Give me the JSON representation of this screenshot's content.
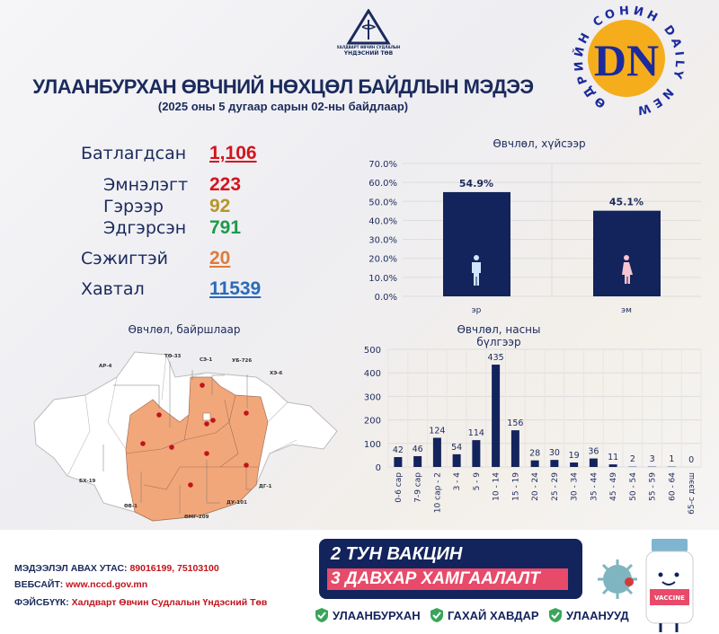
{
  "header": {
    "org_line1": "ХАЛДВАРТ ӨВЧИН СУДЛАЛЫН",
    "org_line2": "ҮНДЭСНИЙ ТӨВ",
    "title": "УЛААНБУРХАН ӨВЧНИЙ НӨХЦӨЛ БАЙДЛЫН МЭДЭЭ",
    "subtitle": "(2025 оны 5 дугаар сарын 02-ны байдлаар)"
  },
  "watermark": {
    "letters": "DN",
    "ring_text": "ӨДРИЙН СОНИН DAILY NEWS"
  },
  "stats": [
    {
      "label": "Батлагдсан",
      "value": "1,106",
      "color": "#d4141c"
    },
    {
      "label": "Эмнэлэгт",
      "value": "223",
      "color": "#d4141c"
    },
    {
      "label": "Гэрээр",
      "value": "92",
      "color": "#b8952a"
    },
    {
      "label": "Эдгэрсэн",
      "value": "791",
      "color": "#1e9a4a"
    },
    {
      "label": "Сэжигтэй",
      "value": "20",
      "color": "#e07a3a"
    },
    {
      "label": "Хавтал",
      "value": "11539",
      "color": "#2a6ab8"
    }
  ],
  "map": {
    "title": "Өвчлөл, байршлаар",
    "labels": [
      "АР-4",
      "ТӨ-33",
      "СЭ-1",
      "УБ-726",
      "ХЭ-6",
      "БХ-19",
      "ӨВ-1",
      "ӨМГ-209",
      "ДУ-101",
      "ДГ-1"
    ],
    "affected_color": "#f2a77a",
    "dot_color": "#c0141c"
  },
  "chart_data": [
    {
      "type": "bar",
      "title": "Өвчлөл, хүйсээр",
      "categories": [
        "эр",
        "эм"
      ],
      "values": [
        54.9,
        45.1
      ],
      "value_labels": [
        "54.9%",
        "45.1%"
      ],
      "icons": [
        "male-icon",
        "female-icon"
      ],
      "yticks": [
        "0.0%",
        "10.0%",
        "20.0%",
        "30.0%",
        "40.0%",
        "50.0%",
        "60.0%",
        "70.0%"
      ],
      "ylim": [
        0,
        70
      ],
      "grid": true,
      "bar_color": "#13235c"
    },
    {
      "type": "bar",
      "title": "Өвчлөл, насны бүлгээр",
      "categories": [
        "0-6 сар",
        "7-9 сар",
        "10 сар - 2",
        "3 - 4",
        "5 - 9",
        "10 - 14",
        "15 - 19",
        "20 - 24",
        "25 - 29",
        "30 - 34",
        "35 - 44",
        "45 - 49",
        "50 - 54",
        "55 - 59",
        "60 - 64",
        "65-с дээш"
      ],
      "values": [
        42,
        46,
        124,
        54,
        114,
        435,
        156,
        28,
        30,
        19,
        36,
        11,
        2,
        3,
        1,
        0
      ],
      "yticks": [
        "0",
        "100",
        "200",
        "300",
        "400",
        "500"
      ],
      "ylim": [
        0,
        500
      ],
      "grid": true,
      "bar_color": "#13235c"
    }
  ],
  "footer": {
    "phone_label": "МЭДЭЭЛЭЛ АВАХ УТАС:",
    "phone_value": "89016199,  75103100",
    "web_label": "ВЕБСАЙТ:",
    "web_value": "www.nccd.gov.mn",
    "fb_label": "ФЭЙСБҮҮК:",
    "fb_value": "Халдварт Өвчин Судлалын Үндэсний Төв",
    "banner_line1": "2 ТУН ВАКЦИН",
    "banner_line2": "3 ДАВХАР ХАМГААЛАЛТ",
    "checks": [
      "УЛААНБУРХАН",
      "ГАХАЙ ХАВДАР",
      "УЛААНУУД"
    ],
    "vaccine_label": "VACCINE"
  }
}
